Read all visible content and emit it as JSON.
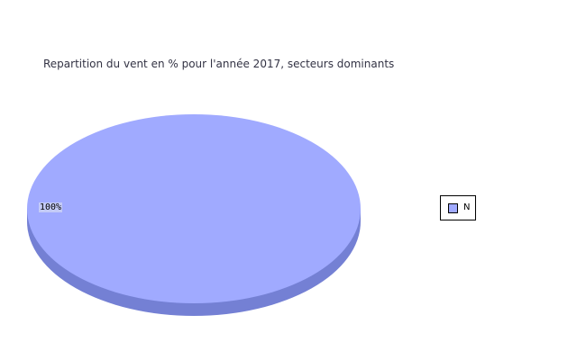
{
  "chart_data": {
    "type": "pie",
    "title": "Repartition du vent en % pour l'année 2017, secteurs dominants",
    "slices": [
      {
        "name": "N",
        "value": 100,
        "label": "100%",
        "color": "#a0aaff",
        "side_color": "#7480d4"
      }
    ],
    "legend": {
      "placement": "right",
      "entries": [
        "N"
      ]
    },
    "style": "3d"
  }
}
